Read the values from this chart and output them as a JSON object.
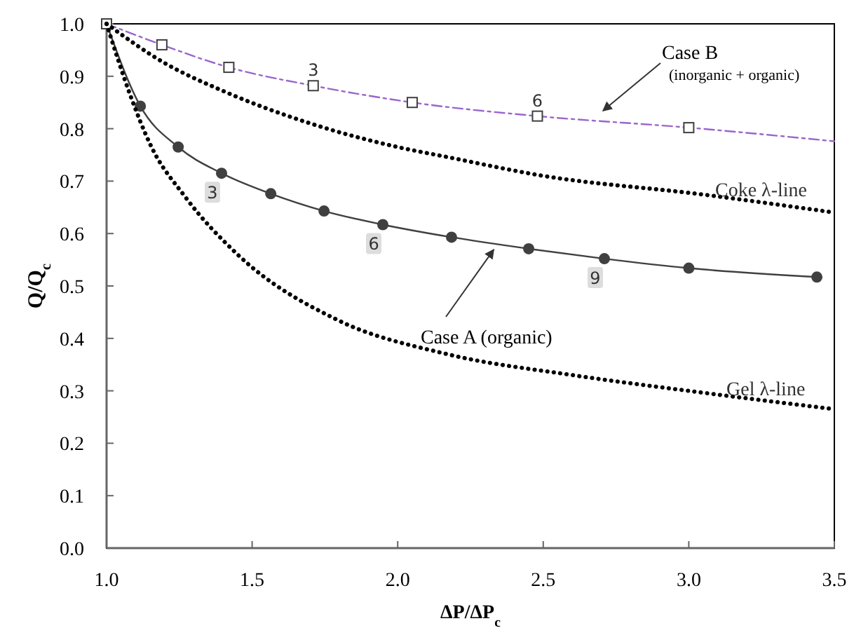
{
  "chart_data": {
    "type": "line",
    "xlabel": "ΔP/ΔP$_{c}$",
    "ylabel": "Q/Q$_{c}$",
    "xlim": [
      1.0,
      3.5
    ],
    "ylim": [
      0.0,
      1.0
    ],
    "xticks": [
      {
        "value": 1.0,
        "label": "1.0"
      },
      {
        "value": 1.5,
        "label": "1.5"
      },
      {
        "value": 2.0,
        "label": "2.0"
      },
      {
        "value": 2.5,
        "label": "2.5"
      },
      {
        "value": 3.0,
        "label": "3.0"
      },
      {
        "value": 3.5,
        "label": "3.5"
      }
    ],
    "yticks": [
      {
        "value": 0,
        "label": "0.0"
      },
      {
        "value": 0.1,
        "label": "0.1"
      },
      {
        "value": 0.2,
        "label": "0.2"
      },
      {
        "value": 0.3,
        "label": "0.3"
      },
      {
        "value": 0.4,
        "label": "0.4"
      },
      {
        "value": 0.5,
        "label": "0.5"
      },
      {
        "value": 0.6,
        "label": "0.6"
      },
      {
        "value": 0.7,
        "label": "0.7"
      },
      {
        "value": 0.8,
        "label": "0.8"
      },
      {
        "value": 0.9,
        "label": "0.9"
      },
      {
        "value": 1.0,
        "label": "1.0"
      }
    ],
    "grid": false,
    "series": [
      {
        "color": "#404040",
        "marker": "circle",
        "line_style": "solid",
        "x": [
          1.0,
          1.116,
          1.246,
          1.395,
          1.564,
          1.747,
          1.949,
          2.185,
          2.45,
          2.71,
          3.0,
          3.44
        ],
        "values": [
          1.0,
          0.843,
          0.765,
          0.715,
          0.676,
          0.643,
          0.617,
          0.593,
          0.571,
          0.552,
          0.534,
          0.517
        ]
      },
      {
        "color": "#9966cc",
        "marker": "none",
        "line_style": "dashed",
        "x": [
          1.0,
          1.19,
          1.42,
          1.71,
          2.05,
          2.48,
          3.0,
          3.5
        ],
        "values": [
          1.0,
          0.96,
          0.917,
          0.882,
          0.85,
          0.824,
          0.802,
          0.776
        ]
      },
      {
        "type": "scatter",
        "color": "#404040",
        "marker": "square",
        "x": [
          1.0,
          1.19,
          1.42,
          1.71,
          2.05,
          2.48,
          3.0
        ],
        "values": [
          1.0,
          0.96,
          0.917,
          0.882,
          0.85,
          0.824,
          0.802
        ]
      },
      {
        "color": "#000000",
        "marker": "none",
        "line_style": "dotted",
        "x": [
          1.0,
          1.2,
          1.4,
          1.7,
          2.0,
          2.17,
          2.5,
          3.04,
          3.5
        ],
        "values": [
          1.0,
          0.925,
          0.872,
          0.81,
          0.765,
          0.746,
          0.71,
          0.675,
          0.64
        ]
      },
      {
        "color": "#000000",
        "marker": "none",
        "line_style": "dotted",
        "x": [
          1.0,
          1.08,
          1.15,
          1.27,
          1.45,
          1.79,
          2.17,
          2.6,
          3.04,
          3.5
        ],
        "values": [
          1.0,
          0.866,
          0.77,
          0.67,
          0.56,
          0.436,
          0.37,
          0.33,
          0.297,
          0.265
        ]
      }
    ],
    "annotations": [
      "Case B",
      "(inorganic + organic)",
      "Coke λ-line",
      {
        "text": "Case A (organic)",
        "x": 2.33,
        "y": 0.58
      },
      "Gel λ-line",
      {
        "text": "3",
        "x": 1.395,
        "y": 0.715
      },
      {
        "text": "6",
        "x": 1.949,
        "y": 0.617
      },
      {
        "text": "9",
        "x": 2.71,
        "y": 0.552
      },
      {
        "text": "3",
        "x": 1.71,
        "y": 0.882
      },
      {
        "text": "6",
        "x": 2.48,
        "y": 0.824
      }
    ]
  }
}
